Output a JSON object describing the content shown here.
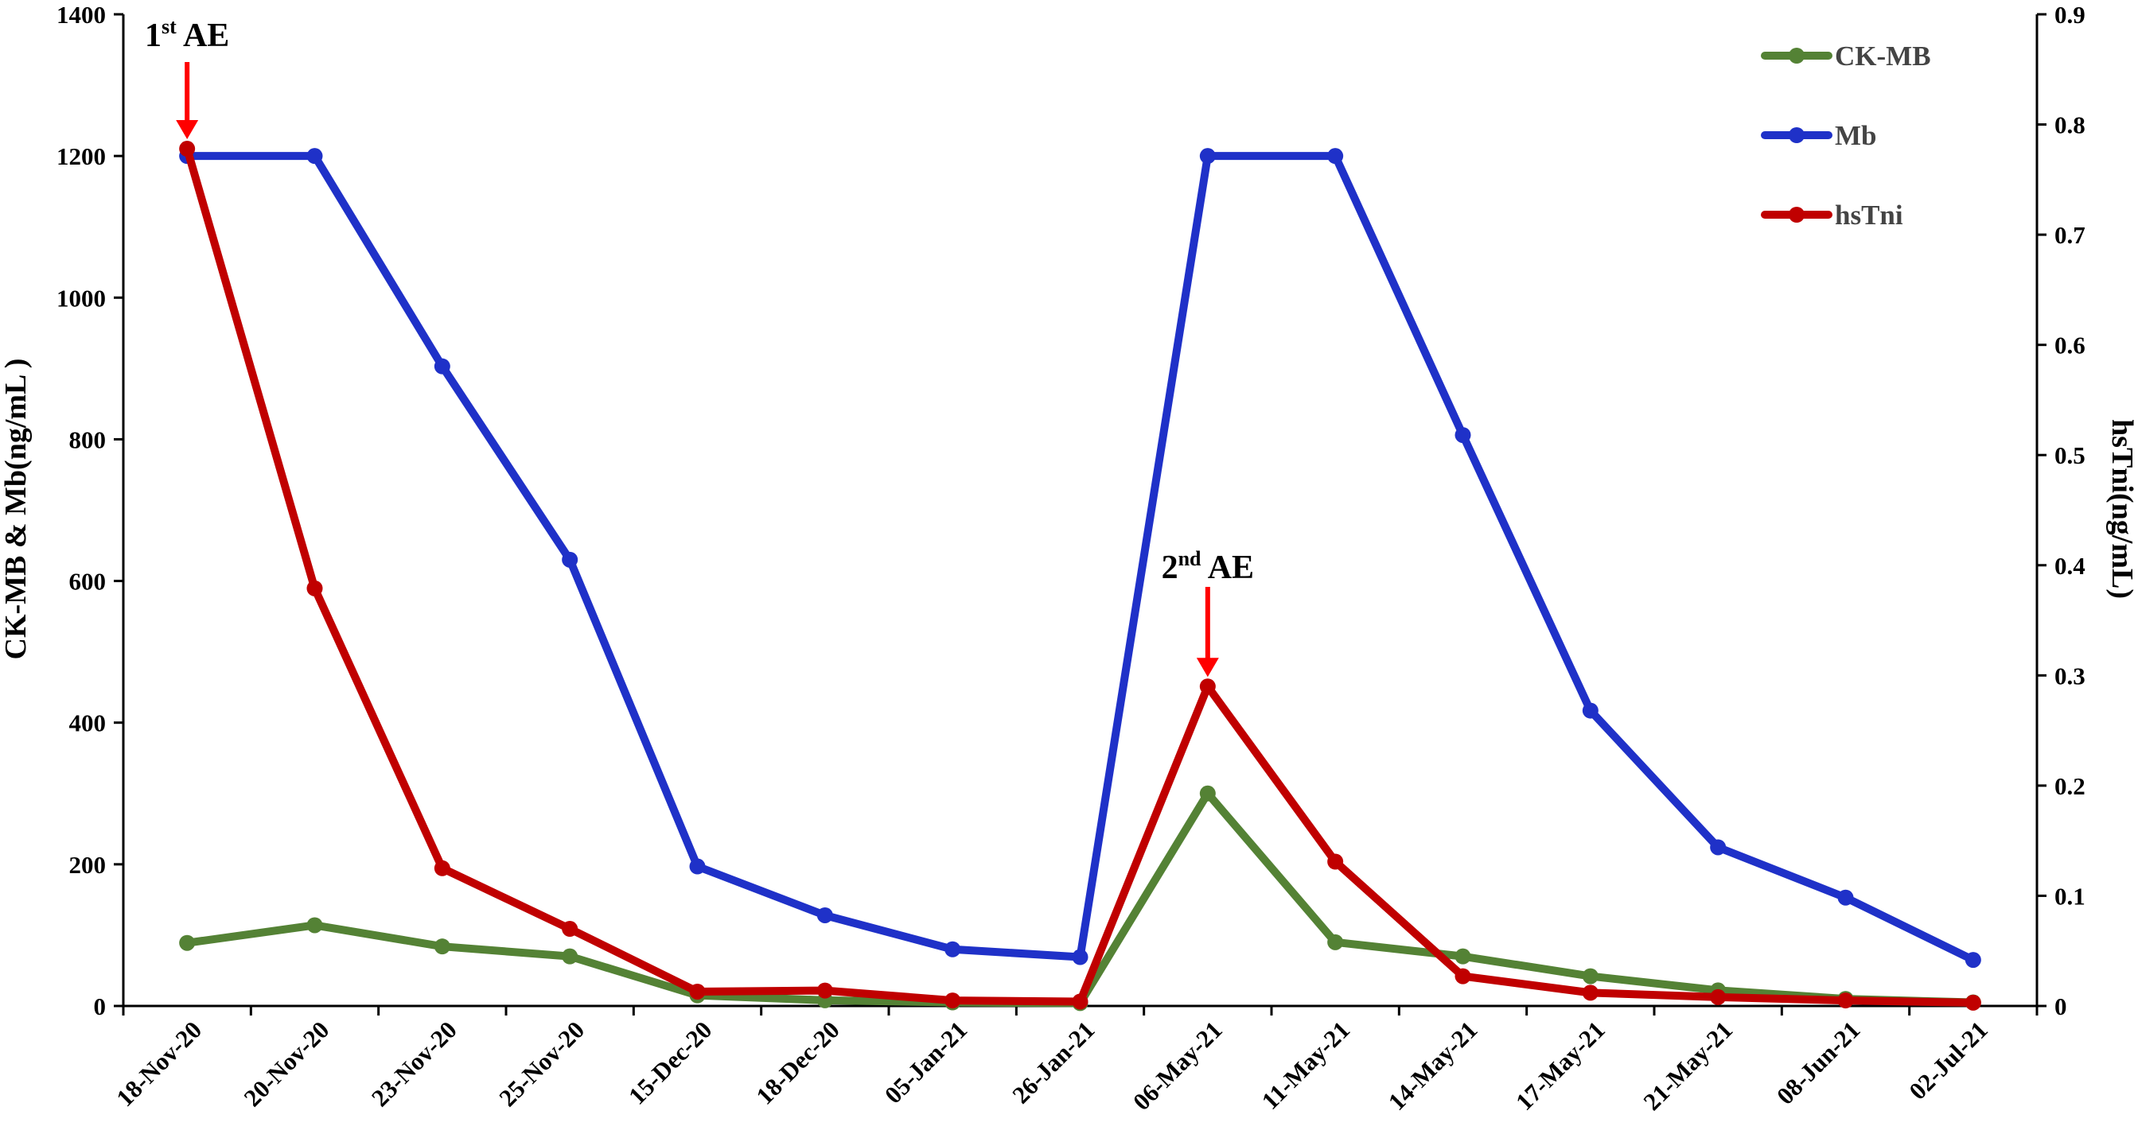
{
  "chart_data": {
    "type": "line",
    "categories": [
      "18-Nov-20",
      "20-Nov-20",
      "23-Nov-20",
      "25-Nov-20",
      "15-Dec-20",
      "18-Dec-20",
      "05-Jan-21",
      "26-Jan-21",
      "06-May-21",
      "11-May-21",
      "14-May-21",
      "17-May-21",
      "21-May-21",
      "08-Jun-21",
      "02-Jul-21"
    ],
    "ylabel": "CK-MB & Mb(ng/mL )",
    "y2label": "hsTni(ng/mL)",
    "ylim": [
      0,
      1400
    ],
    "y2lim": [
      0,
      0.9
    ],
    "yticks": [
      0,
      200,
      400,
      600,
      800,
      1000,
      1200,
      1400
    ],
    "y2ticks": [
      "0",
      "0.1",
      "0.2",
      "0.3",
      "0.4",
      "0.5",
      "0.6",
      "0.7",
      "0.8",
      "0.9"
    ],
    "grid": false,
    "legend_position": "top-right",
    "series": [
      {
        "name": "CK-MB",
        "axis": "left",
        "color": "#548235",
        "values": [
          89,
          114,
          84,
          70,
          15,
          8,
          5,
          4,
          300,
          90,
          70,
          42,
          22,
          10,
          5
        ]
      },
      {
        "name": "Mb",
        "axis": "left",
        "color": "#1f31c8",
        "values": [
          1200,
          1200,
          903,
          630,
          197,
          128,
          80,
          69,
          1200,
          1200,
          806,
          417,
          224,
          153,
          65
        ]
      },
      {
        "name": "hsTni",
        "axis": "right",
        "color": "#c00000",
        "values": [
          0.778,
          0.379,
          0.125,
          0.07,
          0.013,
          0.014,
          0.005,
          0.004,
          0.29,
          0.131,
          0.027,
          0.012,
          0.008,
          0.005,
          0.003
        ]
      }
    ],
    "annotations": [
      {
        "base": "1",
        "sup": "st",
        "rest": " AE",
        "category_index": 0,
        "color": "#ff0000"
      },
      {
        "base": "2",
        "sup": "nd",
        "rest": " AE",
        "category_index": 8,
        "color": "#ff0000"
      }
    ]
  }
}
